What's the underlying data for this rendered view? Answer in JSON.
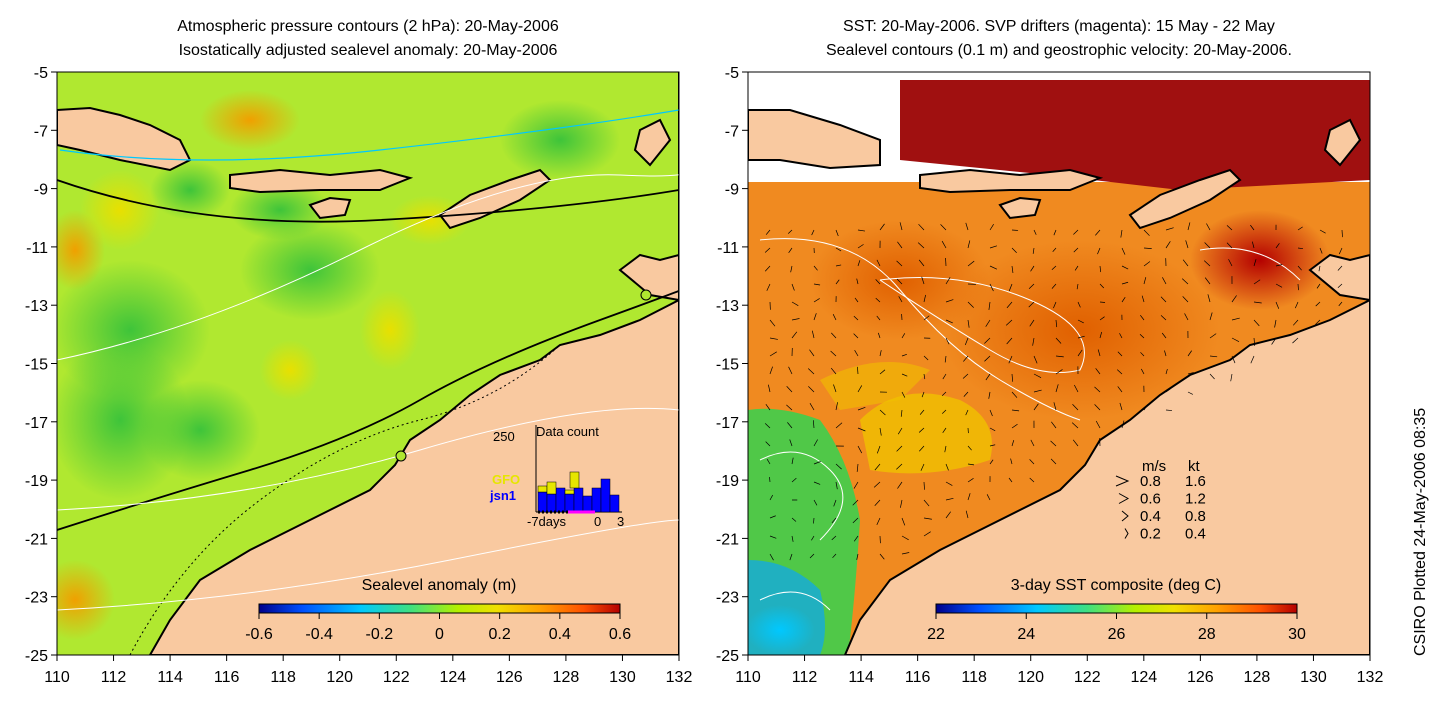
{
  "left_panel": {
    "title_line1": "Atmospheric pressure contours (2 hPa): 20-May-2006",
    "title_line2": "Isostatically adjusted sealevel anomaly: 20-May-2006",
    "colorbar_label": "Sealevel anomaly (m)",
    "colorbar_ticks": [
      "-0.6",
      "-0.4",
      "-0.2",
      "0",
      "0.2",
      "0.4",
      "0.6"
    ],
    "inset": {
      "title": "Data count",
      "ymax_label": "250",
      "legend": [
        "GFO",
        "jsn1"
      ],
      "x_labels": [
        "-7days",
        "0",
        "3"
      ]
    }
  },
  "right_panel": {
    "title_line1": "SST: 20-May-2006. SVP drifters (magenta): 15 May - 22 May",
    "title_line2": "Sealevel contours (0.1 m) and geostrophic velocity: 20-May-2006.",
    "colorbar_label": "3-day SST composite (deg C)",
    "colorbar_ticks": [
      "22",
      "24",
      "26",
      "28",
      "30"
    ],
    "velocity_legend": {
      "header_ms": "m/s",
      "header_kt": "kt",
      "rows": [
        {
          "ms": "0.8",
          "kt": "1.6"
        },
        {
          "ms": "0.6",
          "kt": "1.2"
        },
        {
          "ms": "0.4",
          "kt": "0.8"
        },
        {
          "ms": "0.2",
          "kt": "0.4"
        }
      ]
    }
  },
  "axes": {
    "lat_labels": [
      "-5",
      "-7",
      "-9",
      "-11",
      "-13",
      "-15",
      "-17",
      "-19",
      "-21",
      "-23",
      "-25"
    ],
    "lon_labels": [
      "110",
      "112",
      "114",
      "116",
      "118",
      "120",
      "122",
      "124",
      "126",
      "128",
      "130",
      "132"
    ]
  },
  "credit": "CSIRO Plotted 24-May-2006 08:35",
  "colors": {
    "land": "#f9c9a0",
    "sla_scale": [
      "#00008b",
      "#0050ff",
      "#00c8ff",
      "#40e080",
      "#b4f000",
      "#f0e000",
      "#ffa000",
      "#ff5000",
      "#b40000"
    ],
    "sst_scale": [
      "#00008b",
      "#0050ff",
      "#00c8ff",
      "#40e080",
      "#b4f000",
      "#f0e000",
      "#ffa000",
      "#ff5000",
      "#b40000"
    ],
    "gfo": "#e6e600",
    "jsn1": "#0000ff",
    "drifters": "#ff00ff"
  }
}
